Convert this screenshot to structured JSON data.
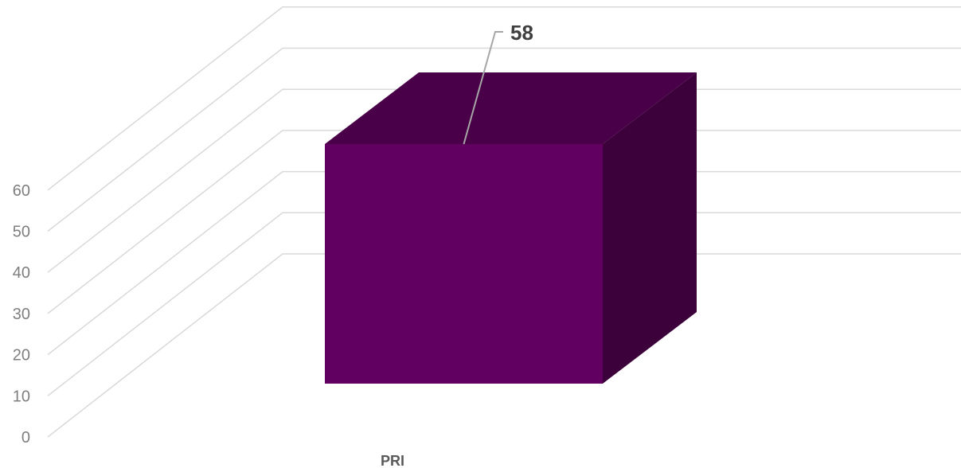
{
  "chart_data": {
    "type": "bar",
    "style": "3d-column",
    "categories": [
      "PRI"
    ],
    "series": [
      {
        "values": [
          58
        ]
      }
    ],
    "data_labels": [
      "58"
    ],
    "ylim": [
      0,
      60
    ],
    "yticks": [
      0,
      10,
      20,
      30,
      40,
      50,
      60
    ],
    "grid": true,
    "legend": "none",
    "colors": {
      "bar_front": "#610060",
      "bar_top": "#4a0049",
      "bar_side": "#3c003b",
      "gridline": "#d9d9d9",
      "tick_text": "#7f7f7f",
      "label_text": "#404040",
      "leader_line": "#a6a6a6"
    }
  }
}
